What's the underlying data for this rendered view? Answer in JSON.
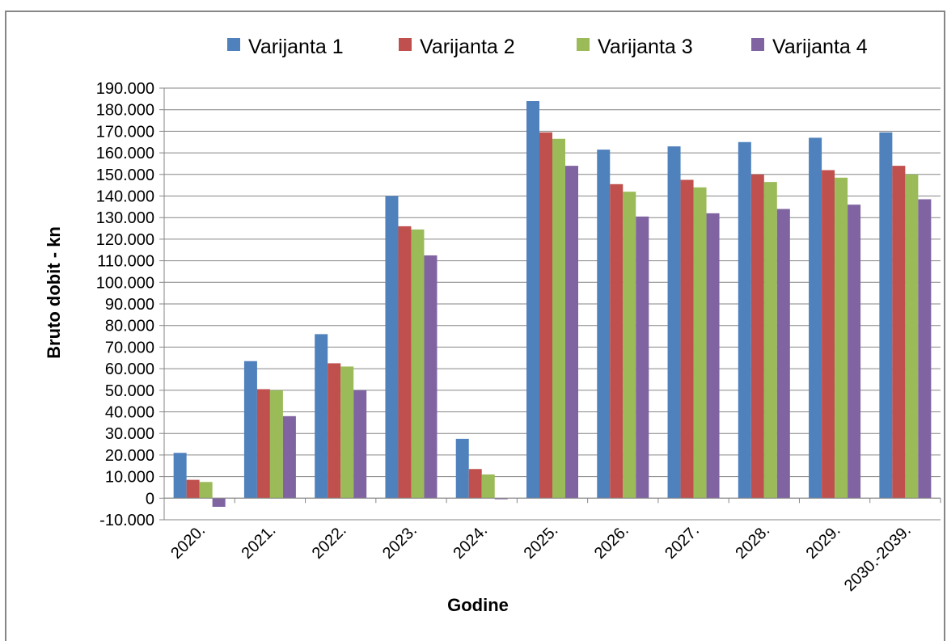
{
  "chart_data": {
    "type": "bar",
    "title": "",
    "xlabel": "Godine",
    "ylabel": "Bruto dobit - kn",
    "ylim": [
      -10000,
      190000
    ],
    "ytick_step": 10000,
    "ytick_labels": [
      "-10.000",
      "0",
      "10.000",
      "20.000",
      "30.000",
      "40.000",
      "50.000",
      "60.000",
      "70.000",
      "80.000",
      "90.000",
      "100.000",
      "110.000",
      "120.000",
      "130.000",
      "140.000",
      "150.000",
      "160.000",
      "170.000",
      "180.000",
      "190.000"
    ],
    "grid": true,
    "legend": "top",
    "categories": [
      "2020.",
      "2021.",
      "2022.",
      "2023.",
      "2024.",
      "2025.",
      "2026.",
      "2027.",
      "2028.",
      "2029.",
      "2030.-2039."
    ],
    "series": [
      {
        "name": "Varijanta 1",
        "color": "#4F81BD",
        "values": [
          21000,
          63500,
          76000,
          140000,
          27500,
          184000,
          161500,
          163000,
          165000,
          167000,
          169500
        ]
      },
      {
        "name": "Varijanta 2",
        "color": "#C0504D",
        "values": [
          8500,
          50500,
          62500,
          126000,
          13500,
          169500,
          145500,
          147500,
          150000,
          152000,
          154000
        ]
      },
      {
        "name": "Varijanta 3",
        "color": "#9BBB59",
        "values": [
          7500,
          50000,
          61000,
          124500,
          11000,
          166500,
          142000,
          144000,
          146500,
          148500,
          150000
        ]
      },
      {
        "name": "Varijanta 4",
        "color": "#8064A2",
        "values": [
          -4000,
          38000,
          50000,
          112500,
          -500,
          154000,
          130500,
          132000,
          134000,
          136000,
          138500
        ]
      }
    ]
  }
}
